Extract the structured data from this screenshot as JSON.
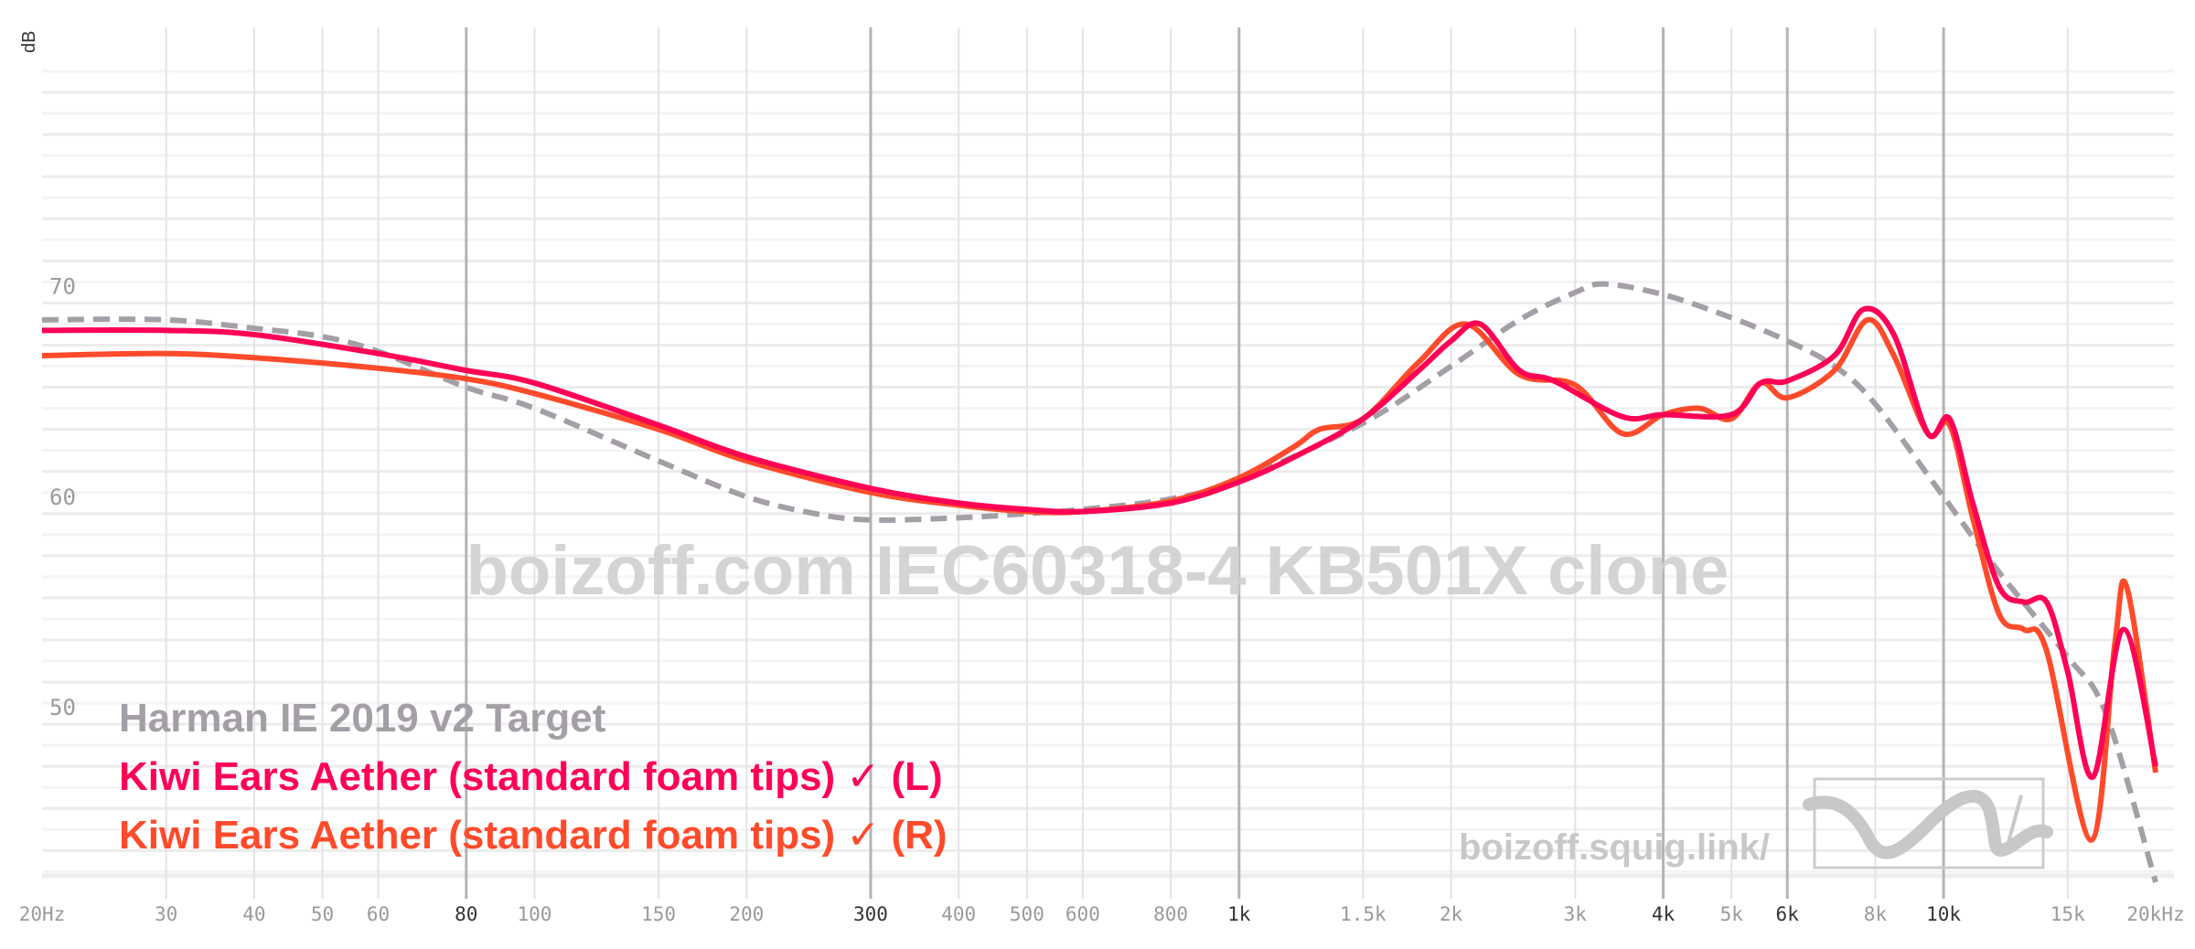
{
  "chart_data": {
    "type": "line",
    "title": "",
    "watermark": "boizoff.com IEC60318-4 KB501X clone",
    "site_label": "boizoff.squig.link/",
    "ylabel": "dB",
    "xscale": "log",
    "xlim": [
      20,
      20000
    ],
    "ylim": [
      42.8,
      81
    ],
    "grid": true,
    "legend_placement": "bottom-left",
    "y_ticks": [
      {
        "value": 70,
        "label": "70"
      },
      {
        "value": 60,
        "label": "60"
      },
      {
        "value": 50,
        "label": "50"
      }
    ],
    "x_ticks": [
      {
        "value": 20,
        "label": "20Hz",
        "major": false
      },
      {
        "value": 30,
        "label": "30",
        "major": false
      },
      {
        "value": 40,
        "label": "40",
        "major": false
      },
      {
        "value": 50,
        "label": "50",
        "major": false
      },
      {
        "value": 60,
        "label": "60",
        "major": false
      },
      {
        "value": 80,
        "label": "80",
        "major": true
      },
      {
        "value": 100,
        "label": "100",
        "major": false
      },
      {
        "value": 150,
        "label": "150",
        "major": false
      },
      {
        "value": 200,
        "label": "200",
        "major": false
      },
      {
        "value": 300,
        "label": "300",
        "major": true
      },
      {
        "value": 400,
        "label": "400",
        "major": false
      },
      {
        "value": 500,
        "label": "500",
        "major": false
      },
      {
        "value": 600,
        "label": "600",
        "major": false
      },
      {
        "value": 800,
        "label": "800",
        "major": false
      },
      {
        "value": 1000,
        "label": "1k",
        "major": true
      },
      {
        "value": 1500,
        "label": "1.5k",
        "major": false
      },
      {
        "value": 2000,
        "label": "2k",
        "major": false
      },
      {
        "value": 3000,
        "label": "3k",
        "major": false
      },
      {
        "value": 4000,
        "label": "4k",
        "major": true
      },
      {
        "value": 5000,
        "label": "5k",
        "major": false
      },
      {
        "value": 6000,
        "label": "6k",
        "major": true
      },
      {
        "value": 8000,
        "label": "8k",
        "major": false
      },
      {
        "value": 10000,
        "label": "10k",
        "major": true
      },
      {
        "value": 15000,
        "label": "15k",
        "major": false
      },
      {
        "value": 20000,
        "label": "20kHz",
        "major": false
      }
    ],
    "series": [
      {
        "name": "Harman IE 2019 v2 Target",
        "color": "#a49ea6",
        "dashed": true,
        "points": [
          [
            20,
            69.2
          ],
          [
            30,
            69.2
          ],
          [
            40,
            68.8
          ],
          [
            50,
            68.4
          ],
          [
            60,
            67.7
          ],
          [
            80,
            66
          ],
          [
            100,
            65
          ],
          [
            150,
            62.5
          ],
          [
            200,
            60.8
          ],
          [
            250,
            60
          ],
          [
            300,
            59.7
          ],
          [
            400,
            59.8
          ],
          [
            500,
            60
          ],
          [
            600,
            60.2
          ],
          [
            800,
            60.7
          ],
          [
            1000,
            61.6
          ],
          [
            1500,
            64.3
          ],
          [
            2000,
            67
          ],
          [
            2500,
            69.2
          ],
          [
            3000,
            70.5
          ],
          [
            3300,
            70.9
          ],
          [
            4000,
            70.4
          ],
          [
            5000,
            69.3
          ],
          [
            6000,
            68.2
          ],
          [
            7000,
            67
          ],
          [
            8000,
            65.2
          ],
          [
            10000,
            60.8
          ],
          [
            12000,
            57.2
          ],
          [
            15000,
            53.2
          ],
          [
            17000,
            50.5
          ],
          [
            20000,
            42.5
          ]
        ]
      },
      {
        "name": "Kiwi Ears Aether (standard foam tips) ✓ (L)",
        "color": "#ff0055",
        "dashed": false,
        "points": [
          [
            20,
            68.7
          ],
          [
            30,
            68.7
          ],
          [
            40,
            68.5
          ],
          [
            60,
            67.6
          ],
          [
            80,
            66.8
          ],
          [
            100,
            66.2
          ],
          [
            150,
            64.2
          ],
          [
            200,
            62.7
          ],
          [
            300,
            61.2
          ],
          [
            400,
            60.5
          ],
          [
            500,
            60.2
          ],
          [
            600,
            60.1
          ],
          [
            800,
            60.5
          ],
          [
            1000,
            61.5
          ],
          [
            1200,
            62.7
          ],
          [
            1500,
            64.5
          ],
          [
            1800,
            66.8
          ],
          [
            2000,
            68.2
          ],
          [
            2200,
            69
          ],
          [
            2500,
            66.8
          ],
          [
            2800,
            66.3
          ],
          [
            3500,
            64.6
          ],
          [
            4000,
            64.7
          ],
          [
            5000,
            64.7
          ],
          [
            5500,
            66.2
          ],
          [
            6000,
            66.3
          ],
          [
            7000,
            67.5
          ],
          [
            7700,
            69.7
          ],
          [
            8500,
            68.5
          ],
          [
            9500,
            63.8
          ],
          [
            10200,
            64.5
          ],
          [
            11000,
            60.5
          ],
          [
            12000,
            56.5
          ],
          [
            13000,
            55.8
          ],
          [
            14000,
            55.8
          ],
          [
            15000,
            52.5
          ],
          [
            16300,
            47.5
          ],
          [
            18000,
            54.5
          ],
          [
            20000,
            48
          ]
        ]
      },
      {
        "name": "Kiwi Ears Aether (standard foam tips) ✓ (R)",
        "color": "#ff4b2b",
        "dashed": false,
        "points": [
          [
            20,
            67.5
          ],
          [
            30,
            67.6
          ],
          [
            40,
            67.4
          ],
          [
            60,
            66.9
          ],
          [
            80,
            66.4
          ],
          [
            100,
            65.7
          ],
          [
            150,
            64
          ],
          [
            200,
            62.5
          ],
          [
            300,
            61
          ],
          [
            400,
            60.4
          ],
          [
            500,
            60.1
          ],
          [
            600,
            60.1
          ],
          [
            800,
            60.6
          ],
          [
            1000,
            61.7
          ],
          [
            1200,
            63.2
          ],
          [
            1300,
            64
          ],
          [
            1500,
            64.5
          ],
          [
            1800,
            67.2
          ],
          [
            2100,
            69
          ],
          [
            2500,
            66.6
          ],
          [
            3000,
            66.1
          ],
          [
            3500,
            63.8
          ],
          [
            4000,
            64.7
          ],
          [
            4500,
            65
          ],
          [
            5000,
            64.5
          ],
          [
            5500,
            66.2
          ],
          [
            6000,
            65.5
          ],
          [
            7000,
            66.8
          ],
          [
            7800,
            69.2
          ],
          [
            8500,
            67.5
          ],
          [
            9500,
            63.8
          ],
          [
            10200,
            64.2
          ],
          [
            11000,
            59.8
          ],
          [
            12000,
            55.2
          ],
          [
            13000,
            54.5
          ],
          [
            14000,
            53.5
          ],
          [
            16200,
            44.5
          ],
          [
            17500,
            53.8
          ],
          [
            18200,
            56.5
          ],
          [
            20000,
            47.7
          ]
        ]
      }
    ]
  }
}
